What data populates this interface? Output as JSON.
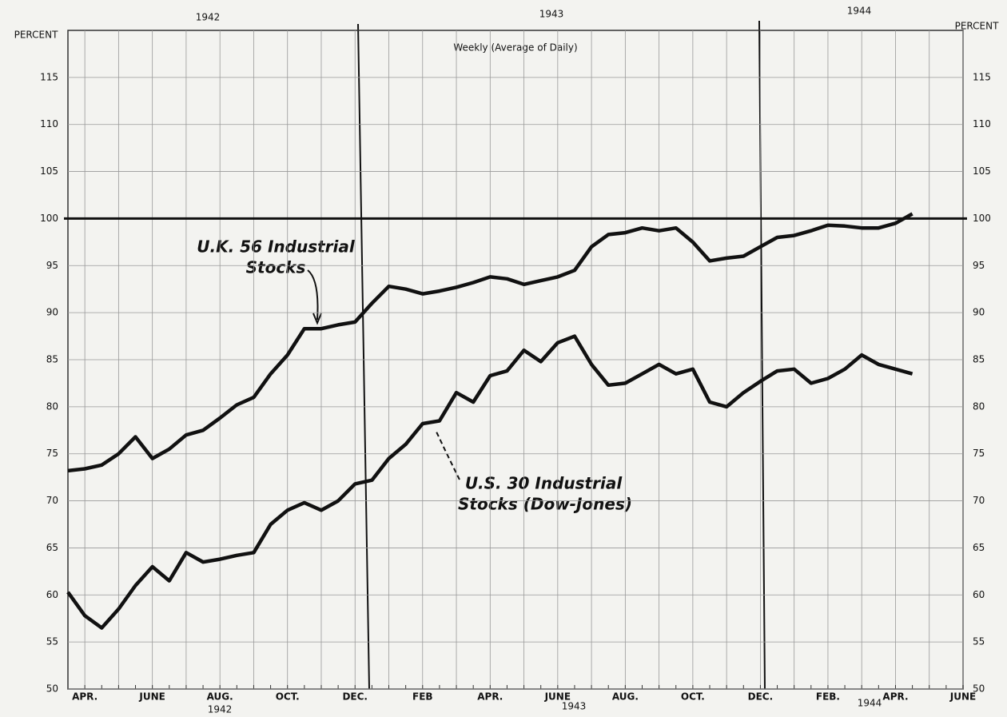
{
  "chart_data": {
    "type": "line",
    "title": "Weekly (Average of Daily)",
    "y_axis_label": "PERCENT",
    "top_years": [
      "1942",
      "1943",
      "1944"
    ],
    "bottom_years": [
      "1942",
      "1943",
      "1944"
    ],
    "categories": [
      null,
      "APR.",
      null,
      null,
      null,
      "JUNE",
      null,
      null,
      null,
      "AUG.",
      null,
      null,
      null,
      "OCT.",
      null,
      null,
      null,
      "DEC.",
      null,
      null,
      null,
      "FEB",
      null,
      null,
      null,
      "APR.",
      null,
      null,
      null,
      "JUNE",
      null,
      null,
      null,
      "AUG.",
      null,
      null,
      null,
      "OCT.",
      null,
      null,
      null,
      "DEC.",
      null,
      null,
      null,
      "FEB.",
      null,
      null,
      null,
      "APR.",
      null,
      null,
      null,
      "JUNE"
    ],
    "series": [
      {
        "color": "#111111",
        "values": [
          73.2,
          73.4,
          73.8,
          75.0,
          76.8,
          74.5,
          75.5,
          77.0,
          77.5,
          78.8,
          80.2,
          81.0,
          83.5,
          85.5,
          88.3,
          88.3,
          88.7,
          89.0,
          91.0,
          92.8,
          92.5,
          92.0,
          92.3,
          92.7,
          93.2,
          93.8,
          93.6,
          93.0,
          93.4,
          93.8,
          94.5,
          97.0,
          98.3,
          98.5,
          99.0,
          98.7,
          99.0,
          97.5,
          95.5,
          95.8,
          96.0,
          97.0,
          98.0,
          98.2,
          98.7,
          99.3,
          99.2,
          99.0,
          99.0,
          99.5,
          100.5,
          null,
          null,
          null
        ]
      },
      {
        "color": "#111111",
        "values": [
          60.3,
          57.8,
          56.5,
          58.5,
          61.0,
          63.0,
          61.5,
          64.5,
          63.5,
          63.8,
          64.2,
          64.5,
          67.5,
          69.0,
          69.8,
          69.0,
          70.0,
          71.8,
          72.2,
          74.5,
          76.0,
          78.2,
          78.5,
          81.5,
          80.5,
          83.3,
          83.8,
          86.0,
          84.8,
          86.8,
          87.5,
          84.5,
          82.3,
          82.5,
          83.5,
          84.5,
          83.5,
          84.0,
          80.5,
          80.0,
          81.5,
          82.7,
          83.8,
          84.0,
          82.5,
          83.0,
          84.0,
          85.5,
          84.5,
          84.0,
          83.5,
          null,
          null,
          null
        ]
      }
    ],
    "annotations": [
      {
        "lines": [
          "U.K. 56 Industrial",
          "Stocks"
        ]
      },
      {
        "lines": [
          "U.S. 30 Industrial",
          "Stocks (Dow-Jones)"
        ]
      }
    ],
    "reference_line": 100,
    "ylim": [
      50,
      120
    ],
    "yticks": [
      50,
      55,
      60,
      65,
      70,
      75,
      80,
      85,
      90,
      95,
      100,
      105,
      110,
      115
    ],
    "grid": true
  }
}
